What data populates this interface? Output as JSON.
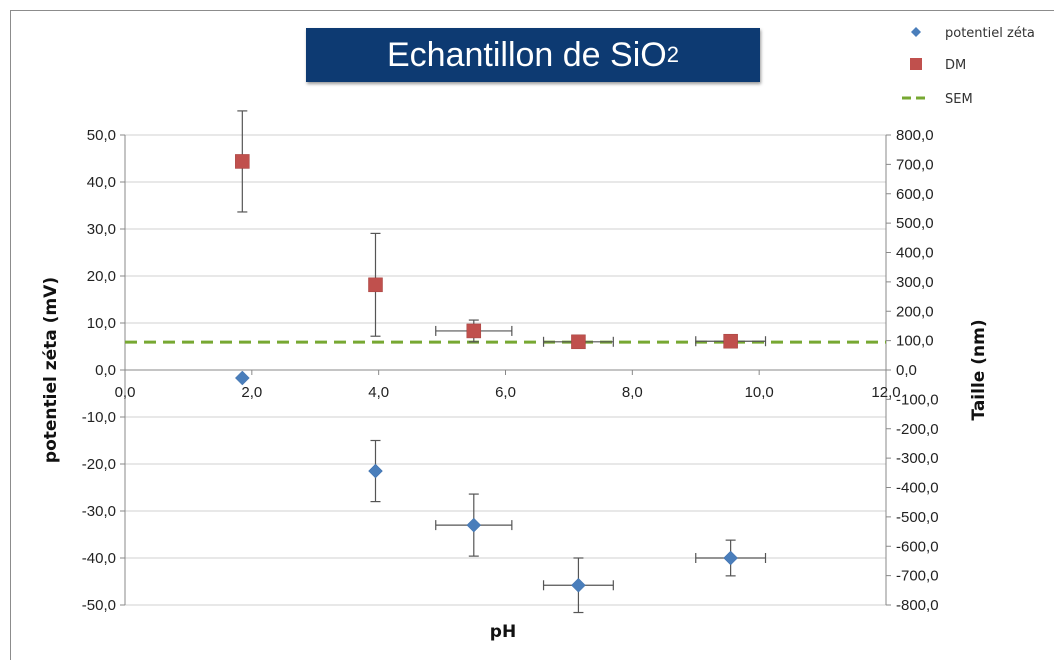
{
  "title": {
    "main": "Echantillon de SiO",
    "sub": "2"
  },
  "chart_data": {
    "type": "scatter",
    "xlabel": "pH",
    "ylabel_left": "potentiel zéta (mV)",
    "ylabel_right": "Taille (nm)",
    "xlim": [
      0,
      12
    ],
    "ylim_left": [
      -50,
      50
    ],
    "ylim_right": [
      -800,
      800
    ],
    "x_ticks": [
      "0,0",
      "2,0",
      "4,0",
      "6,0",
      "8,0",
      "10,0",
      "12,0"
    ],
    "y_left_ticks": [
      "50,0",
      "40,0",
      "30,0",
      "20,0",
      "10,0",
      "0,0",
      "-10,0",
      "-20,0",
      "-30,0",
      "-40,0",
      "-50,0"
    ],
    "y_right_ticks": [
      "800,0",
      "700,0",
      "600,0",
      "500,0",
      "400,0",
      "300,0",
      "200,0",
      "100,0",
      "0,0",
      "-100,0",
      "-200,0",
      "-300,0",
      "-400,0",
      "-500,0",
      "-600,0",
      "-700,0",
      "-800,0"
    ],
    "grid": "horizontal",
    "legend_position": "top-right",
    "series": [
      {
        "name": "potentiel zéta",
        "axis": "left",
        "marker": "diamond",
        "color": "#4a7ebb",
        "points": [
          {
            "x": 1.85,
            "y": -1.7,
            "yerr": [
              0,
              0
            ],
            "xerr": [
              0,
              0
            ]
          },
          {
            "x": 3.95,
            "y": -21.5,
            "yerr": [
              6.5,
              6.5
            ],
            "xerr": [
              0,
              0
            ]
          },
          {
            "x": 5.5,
            "y": -33.0,
            "yerr": [
              6.6,
              6.6
            ],
            "xerr": [
              0.6,
              0.6
            ]
          },
          {
            "x": 7.15,
            "y": -45.8,
            "yerr": [
              5.8,
              5.8
            ],
            "xerr": [
              0.55,
              0.55
            ]
          },
          {
            "x": 9.55,
            "y": -40.0,
            "yerr": [
              3.8,
              3.8
            ],
            "xerr": [
              0.55,
              0.55
            ]
          }
        ]
      },
      {
        "name": "DM",
        "axis": "right",
        "marker": "square",
        "color": "#c0504d",
        "points": [
          {
            "x": 1.85,
            "y": 710,
            "yerr": [
              172,
              172
            ],
            "xerr": [
              0,
              0
            ]
          },
          {
            "x": 3.95,
            "y": 290,
            "yerr": [
              175,
              175
            ],
            "xerr": [
              0,
              0
            ]
          },
          {
            "x": 5.5,
            "y": 133,
            "yerr": [
              37,
              37
            ],
            "xerr": [
              0.6,
              0.6
            ]
          },
          {
            "x": 7.15,
            "y": 96,
            "yerr": [
              0,
              0
            ],
            "xerr": [
              0.55,
              0.55
            ]
          },
          {
            "x": 9.55,
            "y": 98,
            "yerr": [
              0,
              0
            ],
            "xerr": [
              0.55,
              0.55
            ]
          }
        ]
      },
      {
        "name": "SEM",
        "axis": "right",
        "style": "dashed",
        "color": "#77a832",
        "y": 95
      }
    ]
  }
}
